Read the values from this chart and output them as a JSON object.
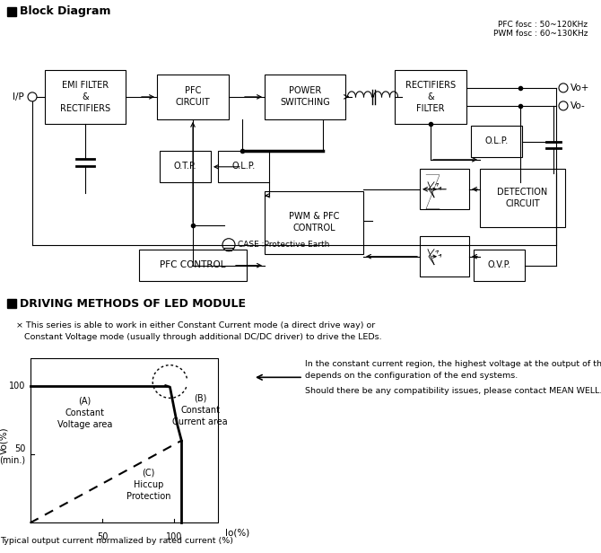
{
  "title_block": "Block Diagram",
  "title_driving": "DRIVING METHODS OF LED MODULE",
  "freq_text": "PFC fosc : 50~120KHz\nPWM fosc : 60~130KHz",
  "note_text": "× This series is able to work in either Constant Current mode (a direct drive way) or\n   Constant Voltage mode (usually through additional DC/DC driver) to drive the LEDs.",
  "right_text1": "In the constant current region, the highest voltage at the output of the driver\ndepends on the configuration of the end systems.",
  "right_text2": "Should there be any compatibility issues, please contact MEAN WELL.",
  "case_text": "CASE :Protective Earth",
  "ip_label": "I/P",
  "vo_plus": "Vo+",
  "vo_minus": "Vo-",
  "background_color": "#ffffff",
  "graph_caption": "Typical output current normalized by rated current (%)",
  "label_A": "(A)\nConstant\nVoltage area",
  "label_B": "(B)\nConstant\nCurrent area",
  "label_C": "(C)\nHiccup\nProtection"
}
